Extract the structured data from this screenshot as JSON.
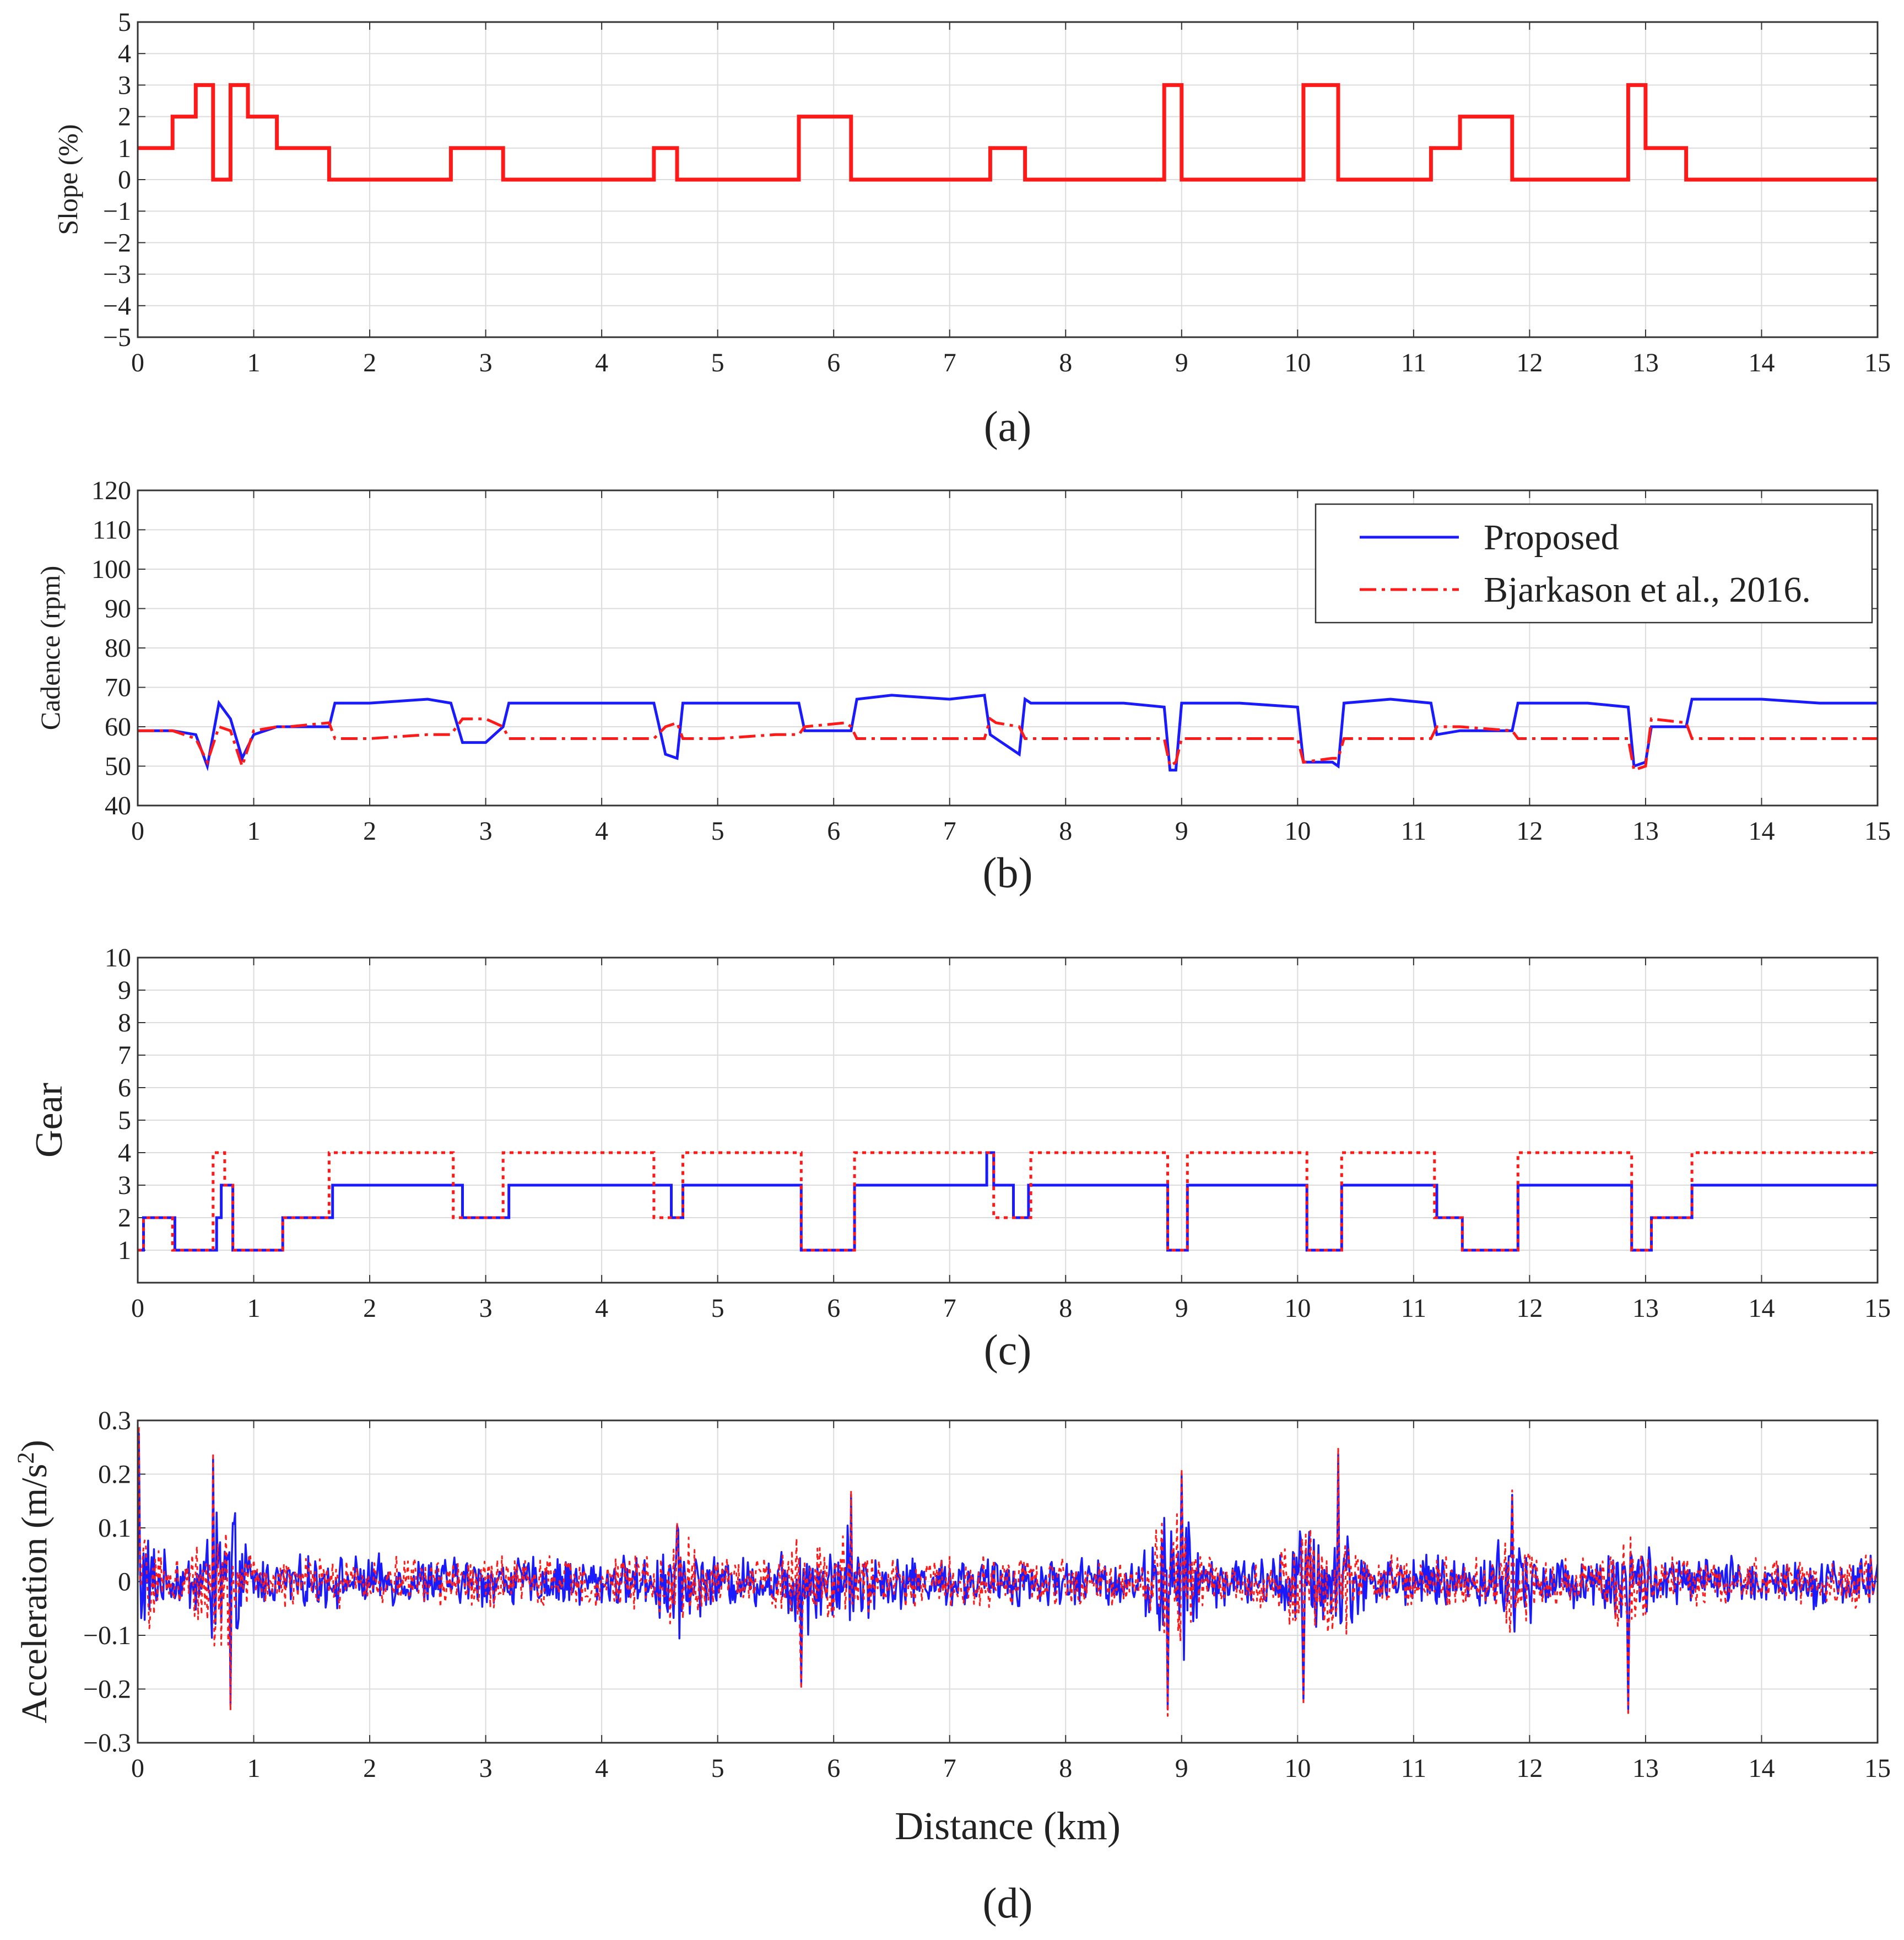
{
  "chart_data": [
    {
      "type": "line",
      "caption": "(a)",
      "xlabel": "",
      "ylabel": "Slope (%)",
      "xlim": [
        0,
        15
      ],
      "ylim": [
        -5,
        5
      ],
      "xticks": [
        0,
        1,
        2,
        3,
        4,
        5,
        6,
        7,
        8,
        9,
        10,
        11,
        12,
        13,
        14,
        15
      ],
      "yticks": [
        -5,
        -4,
        -3,
        -2,
        -1,
        0,
        1,
        2,
        3,
        4,
        5
      ],
      "ytick_labels": [
        "−5",
        "−4",
        "−3",
        "−2",
        "−1",
        "0",
        "1",
        "2",
        "3",
        "4",
        "5"
      ],
      "grid": true,
      "series": [
        {
          "name": "Slope",
          "color": "#ff1a1a",
          "style": "solid",
          "x": [
            0,
            0.3,
            0.3,
            0.5,
            0.5,
            0.65,
            0.65,
            0.8,
            0.8,
            0.95,
            0.95,
            1.2,
            1.2,
            1.65,
            1.65,
            2.7,
            2.7,
            3.15,
            3.15,
            4.45,
            4.45,
            4.65,
            4.65,
            5.7,
            5.7,
            6.15,
            6.15,
            7.35,
            7.35,
            7.65,
            7.65,
            8.85,
            8.85,
            9.0,
            9.0,
            10.05,
            10.05,
            10.35,
            10.35,
            11.15,
            11.15,
            11.4,
            11.4,
            11.85,
            11.85,
            12.85,
            12.85,
            13.0,
            13.0,
            13.35,
            13.35,
            15
          ],
          "y": [
            1,
            1,
            2,
            2,
            3,
            3,
            0,
            0,
            3,
            3,
            2,
            2,
            1,
            1,
            0,
            0,
            1,
            1,
            0,
            0,
            1,
            1,
            0,
            0,
            2,
            2,
            0,
            0,
            1,
            1,
            0,
            0,
            3,
            3,
            0,
            0,
            3,
            3,
            0,
            0,
            1,
            1,
            2,
            2,
            0,
            0,
            3,
            3,
            1,
            1,
            0,
            0
          ]
        }
      ]
    },
    {
      "type": "line",
      "caption": "(b)",
      "xlabel": "",
      "ylabel": "Cadence (rpm)",
      "xlim": [
        0,
        15
      ],
      "ylim": [
        40,
        120
      ],
      "xticks": [
        0,
        1,
        2,
        3,
        4,
        5,
        6,
        7,
        8,
        9,
        10,
        11,
        12,
        13,
        14,
        15
      ],
      "yticks": [
        40,
        50,
        60,
        70,
        80,
        90,
        100,
        110,
        120
      ],
      "ytick_labels": [
        "40",
        "50",
        "60",
        "70",
        "80",
        "90",
        "100",
        "110",
        "120"
      ],
      "grid": true,
      "legend": {
        "placement": "top-right",
        "entries": [
          "Proposed",
          "Bjarkason et al., 2016."
        ]
      },
      "series": [
        {
          "name": "Proposed",
          "color": "#1a1aff",
          "style": "solid",
          "x": [
            0,
            0.3,
            0.5,
            0.6,
            0.7,
            0.8,
            0.9,
            1.0,
            1.2,
            1.3,
            1.65,
            1.7,
            2.0,
            2.5,
            2.7,
            2.8,
            3.0,
            3.15,
            3.2,
            3.5,
            4.0,
            4.45,
            4.55,
            4.65,
            4.7,
            5.0,
            5.5,
            5.7,
            5.75,
            6.1,
            6.15,
            6.2,
            6.5,
            7.0,
            7.3,
            7.35,
            7.4,
            7.6,
            7.65,
            7.7,
            8.0,
            8.5,
            8.85,
            8.9,
            8.95,
            9.0,
            9.05,
            9.5,
            10.0,
            10.05,
            10.3,
            10.35,
            10.4,
            10.8,
            11.15,
            11.2,
            11.4,
            11.85,
            11.9,
            12.5,
            12.85,
            12.9,
            13.0,
            13.05,
            13.35,
            13.4,
            14.0,
            14.5,
            15
          ],
          "y": [
            59,
            59,
            58,
            50,
            66,
            62,
            52,
            58,
            60,
            60,
            60,
            66,
            66,
            67,
            66,
            56,
            56,
            60,
            66,
            66,
            66,
            66,
            53,
            52,
            66,
            66,
            66,
            66,
            59,
            59,
            59,
            67,
            68,
            67,
            68,
            58,
            57,
            53,
            67,
            66,
            66,
            66,
            65,
            49,
            49,
            66,
            66,
            66,
            65,
            51,
            51,
            50,
            66,
            67,
            66,
            58,
            59,
            59,
            66,
            66,
            65,
            50,
            51,
            60,
            60,
            67,
            67,
            66,
            66
          ]
        },
        {
          "name": "Bjarkason et al., 2016.",
          "color": "#ff1a1a",
          "style": "dashdot",
          "x": [
            0,
            0.3,
            0.5,
            0.6,
            0.7,
            0.8,
            0.9,
            1.0,
            1.2,
            1.3,
            1.65,
            1.7,
            2.0,
            2.5,
            2.7,
            2.8,
            3.0,
            3.15,
            3.2,
            3.5,
            4.0,
            4.45,
            4.55,
            4.65,
            4.7,
            5.0,
            5.5,
            5.7,
            5.75,
            6.1,
            6.15,
            6.2,
            6.5,
            7.0,
            7.3,
            7.35,
            7.4,
            7.6,
            7.65,
            7.7,
            8.0,
            8.5,
            8.85,
            8.9,
            8.95,
            9.0,
            9.05,
            9.5,
            10.0,
            10.05,
            10.3,
            10.35,
            10.4,
            10.8,
            11.15,
            11.2,
            11.4,
            11.85,
            11.9,
            12.5,
            12.85,
            12.9,
            13.0,
            13.05,
            13.35,
            13.4,
            14.0,
            14.5,
            15
          ],
          "y": [
            59,
            59,
            57,
            51,
            60,
            59,
            50,
            59,
            60,
            60,
            61,
            57,
            57,
            58,
            58,
            62,
            62,
            60,
            57,
            57,
            57,
            57,
            60,
            61,
            57,
            57,
            58,
            58,
            60,
            61,
            60,
            57,
            57,
            57,
            57,
            62,
            61,
            60,
            57,
            57,
            57,
            57,
            57,
            50,
            51,
            57,
            57,
            57,
            57,
            51,
            52,
            52,
            57,
            57,
            57,
            60,
            60,
            59,
            57,
            57,
            57,
            49,
            50,
            62,
            61,
            57,
            57,
            57,
            57
          ]
        }
      ]
    },
    {
      "type": "line",
      "caption": "(c)",
      "xlabel": "",
      "ylabel": "Gear",
      "xlim": [
        0,
        15
      ],
      "ylim": [
        0,
        10
      ],
      "xticks": [
        0,
        1,
        2,
        3,
        4,
        5,
        6,
        7,
        8,
        9,
        10,
        11,
        12,
        13,
        14,
        15
      ],
      "yticks": [
        1,
        2,
        3,
        4,
        5,
        6,
        7,
        8,
        9,
        10
      ],
      "ytick_labels": [
        "1",
        "2",
        "3",
        "4",
        "5",
        "6",
        "7",
        "8",
        "9",
        "10"
      ],
      "grid": true,
      "series": [
        {
          "name": "Proposed",
          "color": "#1a1aff",
          "style": "solid",
          "x": [
            0,
            0.05,
            0.05,
            0.32,
            0.32,
            0.68,
            0.68,
            0.72,
            0.72,
            0.82,
            0.82,
            1.25,
            1.25,
            1.68,
            1.68,
            2.8,
            2.8,
            3.2,
            3.2,
            4.6,
            4.6,
            4.7,
            4.7,
            5.72,
            5.72,
            6.18,
            6.18,
            7.32,
            7.32,
            7.38,
            7.38,
            7.55,
            7.55,
            7.68,
            7.68,
            8.88,
            8.88,
            9.05,
            9.05,
            10.08,
            10.08,
            10.38,
            10.38,
            11.2,
            11.2,
            11.42,
            11.42,
            11.9,
            11.9,
            12.88,
            12.88,
            13.05,
            13.05,
            13.4,
            13.4,
            15
          ],
          "y": [
            1,
            1,
            2,
            2,
            1,
            1,
            2,
            2,
            3,
            3,
            1,
            1,
            2,
            2,
            3,
            3,
            2,
            2,
            3,
            3,
            2,
            2,
            3,
            3,
            1,
            1,
            3,
            3,
            4,
            4,
            3,
            3,
            2,
            2,
            3,
            3,
            1,
            1,
            3,
            3,
            1,
            1,
            3,
            3,
            2,
            2,
            1,
            1,
            3,
            3,
            1,
            1,
            2,
            2,
            3,
            3
          ]
        },
        {
          "name": "Bjarkason et al., 2016.",
          "color": "#ff1a1a",
          "style": "dotted",
          "x": [
            0,
            0.05,
            0.05,
            0.3,
            0.3,
            0.65,
            0.65,
            0.75,
            0.75,
            0.82,
            0.82,
            1.25,
            1.25,
            1.65,
            1.65,
            2.72,
            2.72,
            3.15,
            3.15,
            4.45,
            4.45,
            4.7,
            4.7,
            5.72,
            5.72,
            6.18,
            6.18,
            7.38,
            7.38,
            7.7,
            7.7,
            8.88,
            8.88,
            9.05,
            9.05,
            10.08,
            10.08,
            10.38,
            10.38,
            11.18,
            11.18,
            11.42,
            11.42,
            11.9,
            11.9,
            12.88,
            12.88,
            13.05,
            13.05,
            13.4,
            13.4,
            15
          ],
          "y": [
            1,
            1,
            2,
            2,
            1,
            1,
            4,
            4,
            3,
            3,
            1,
            1,
            2,
            2,
            4,
            4,
            2,
            2,
            4,
            4,
            2,
            2,
            4,
            4,
            1,
            1,
            4,
            4,
            2,
            2,
            4,
            4,
            1,
            1,
            4,
            4,
            1,
            1,
            4,
            4,
            2,
            2,
            1,
            1,
            4,
            4,
            1,
            1,
            2,
            2,
            4,
            4
          ]
        }
      ]
    },
    {
      "type": "line",
      "caption": "(d)",
      "xlabel": "Distance (km)",
      "ylabel": "Acceleration (m/s",
      "ylabel_superscript": "2",
      "ylabel_suffix": ")",
      "xlim": [
        0,
        15
      ],
      "ylim": [
        -0.3,
        0.3
      ],
      "xticks": [
        0,
        1,
        2,
        3,
        4,
        5,
        6,
        7,
        8,
        9,
        10,
        11,
        12,
        13,
        14,
        15
      ],
      "yticks": [
        -0.3,
        -0.2,
        -0.1,
        0,
        0.1,
        0.2,
        0.3
      ],
      "ytick_labels": [
        "−0.3",
        "−0.2",
        "−0.1",
        "0",
        "0.1",
        "0.2",
        "0.3"
      ],
      "grid": true,
      "noise_envelope": {
        "base_amplitude": 0.035,
        "noise_sample_count": 1500,
        "spikes": [
          {
            "x": 0.01,
            "y": 0.29
          },
          {
            "x": 0.65,
            "y": 0.24
          },
          {
            "x": 0.8,
            "y": -0.24
          },
          {
            "x": 4.65,
            "y": 0.11
          },
          {
            "x": 5.72,
            "y": -0.2
          },
          {
            "x": 6.15,
            "y": 0.17
          },
          {
            "x": 8.88,
            "y": -0.25
          },
          {
            "x": 9.0,
            "y": 0.21
          },
          {
            "x": 10.05,
            "y": -0.23
          },
          {
            "x": 10.35,
            "y": 0.25
          },
          {
            "x": 11.85,
            "y": 0.17
          },
          {
            "x": 12.85,
            "y": -0.25
          }
        ]
      },
      "series": [
        {
          "name": "Proposed",
          "color": "#1a1aff",
          "style": "solid"
        },
        {
          "name": "Bjarkason et al., 2016.",
          "color": "#ff1a1a",
          "style": "dotted"
        }
      ]
    }
  ]
}
